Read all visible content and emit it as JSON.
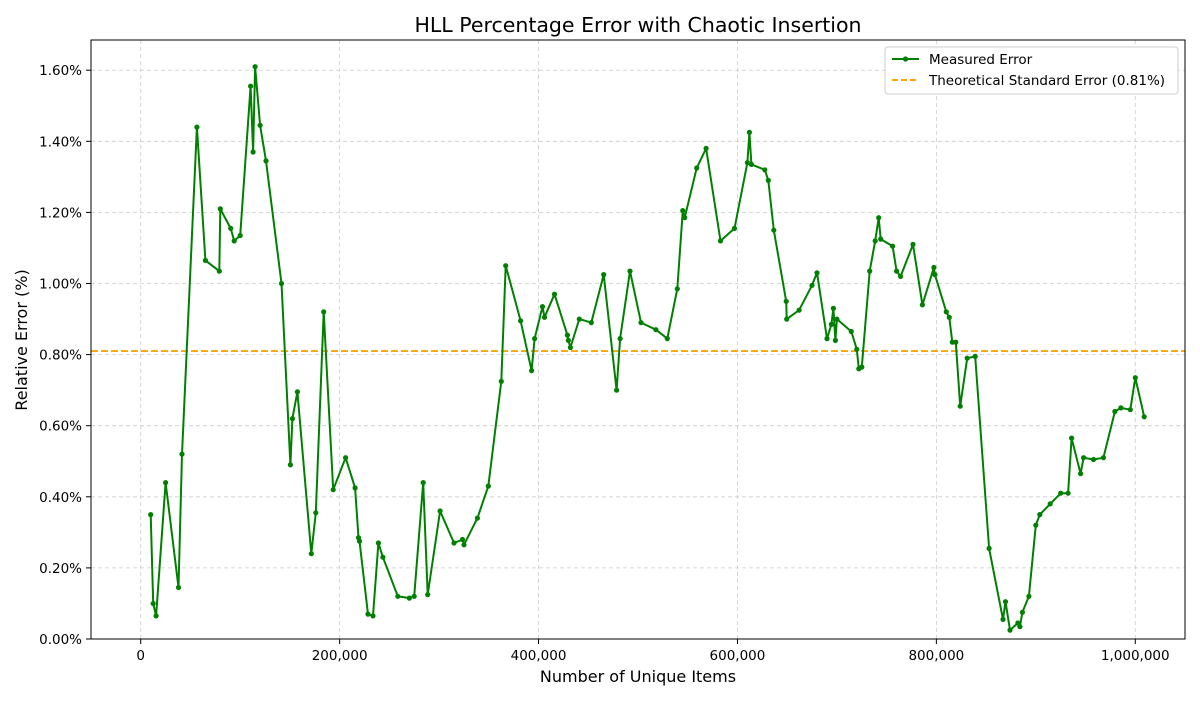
{
  "chart_data": {
    "type": "line",
    "title": "HLL Percentage Error with Chaotic Insertion",
    "xlabel": "Number of Unique Items",
    "ylabel": "Relative Error (%)",
    "xlim": [
      -50000,
      1050000
    ],
    "ylim": [
      0,
      1.685
    ],
    "x_ticks": [
      0,
      200000,
      400000,
      600000,
      800000,
      1000000
    ],
    "x_tick_labels": [
      "0",
      "200,000",
      "400,000",
      "600,000",
      "800,000",
      "1,000,000"
    ],
    "y_ticks": [
      0,
      0.2,
      0.4,
      0.6,
      0.8,
      1.0,
      1.2,
      1.4,
      1.6
    ],
    "y_tick_labels": [
      "0.00%",
      "0.20%",
      "0.40%",
      "0.60%",
      "0.80%",
      "1.00%",
      "1.20%",
      "1.40%",
      "1.60%"
    ],
    "grid": true,
    "legend_position": "top-right",
    "reference_line": {
      "name": "Theoretical Standard Error (0.81%)",
      "value": 0.81,
      "color": "#ffa500",
      "style": "dashed"
    },
    "series": [
      {
        "name": "Measured Error",
        "color": "#008000",
        "marker": "circle",
        "x": [
          10000,
          12500,
          15500,
          25000,
          38000,
          41500,
          56500,
          65000,
          79000,
          80000,
          90500,
          94000,
          100000,
          110500,
          113000,
          115000,
          120000,
          126000,
          141500,
          150500,
          152500,
          157500,
          171500,
          176000,
          184000,
          193500,
          206000,
          215500,
          219000,
          220000,
          228500,
          233500,
          239000,
          243500,
          258500,
          270000,
          275000,
          284000,
          288500,
          301000,
          315000,
          323500,
          325000,
          338500,
          349500,
          362500,
          367000,
          382000,
          393000,
          396000,
          404000,
          406000,
          416000,
          429000,
          430000,
          432000,
          441000,
          453000,
          465500,
          478500,
          482000,
          492000,
          503000,
          518000,
          529500,
          539500,
          545000,
          547000,
          559000,
          568500,
          583000,
          597000,
          610000,
          612000,
          614000,
          627500,
          631000,
          636500,
          649000,
          649500,
          662000,
          675000,
          680000,
          690000,
          694500,
          696500,
          698500,
          700000,
          714500,
          720000,
          722000,
          725000,
          733000,
          738500,
          742000,
          744000,
          756000,
          760000,
          764000,
          776500,
          786000,
          797500,
          798500,
          810000,
          813000,
          816000,
          819500,
          824000,
          831000,
          839000,
          853000,
          867000,
          869500,
          874000,
          882000,
          884000,
          886500,
          893000,
          900000,
          904000,
          914500,
          925000,
          932500,
          936000,
          945000,
          948000,
          958000,
          968000,
          979500,
          985500,
          995000,
          1000000,
          1009000
        ],
        "values": [
          0.35,
          0.1,
          0.065,
          0.44,
          0.145,
          0.52,
          1.44,
          1.065,
          1.035,
          1.21,
          1.155,
          1.12,
          1.135,
          1.555,
          1.37,
          1.61,
          1.445,
          1.345,
          1.0,
          0.49,
          0.62,
          0.695,
          0.24,
          0.355,
          0.92,
          0.42,
          0.51,
          0.425,
          0.285,
          0.275,
          0.07,
          0.065,
          0.27,
          0.23,
          0.12,
          0.115,
          0.12,
          0.44,
          0.125,
          0.36,
          0.27,
          0.28,
          0.265,
          0.34,
          0.43,
          0.725,
          1.05,
          0.895,
          0.755,
          0.845,
          0.935,
          0.905,
          0.97,
          0.855,
          0.84,
          0.82,
          0.9,
          0.89,
          1.025,
          0.7,
          0.845,
          1.035,
          0.89,
          0.87,
          0.845,
          0.985,
          1.205,
          1.185,
          1.325,
          1.38,
          1.12,
          1.155,
          1.34,
          1.425,
          1.335,
          1.32,
          1.29,
          1.15,
          0.95,
          0.9,
          0.925,
          0.995,
          1.03,
          0.845,
          0.885,
          0.93,
          0.84,
          0.9,
          0.865,
          0.815,
          0.76,
          0.765,
          1.035,
          1.12,
          1.185,
          1.125,
          1.105,
          1.035,
          1.02,
          1.11,
          0.94,
          1.045,
          1.025,
          0.92,
          0.905,
          0.835,
          0.835,
          0.655,
          0.79,
          0.795,
          0.255,
          0.055,
          0.105,
          0.025,
          0.045,
          0.035,
          0.075,
          0.12,
          0.32,
          0.35,
          0.38,
          0.41,
          0.41,
          0.565,
          0.465,
          0.51,
          0.505,
          0.51,
          0.64,
          0.65,
          0.645,
          0.735,
          0.625
        ]
      }
    ]
  }
}
